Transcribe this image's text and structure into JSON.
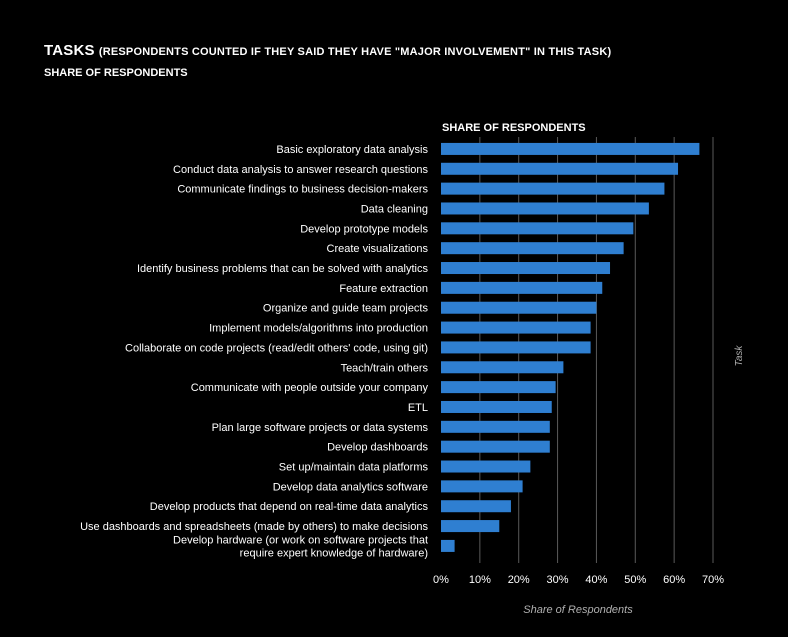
{
  "header": {
    "title_main": "TASKS",
    "title_sub": "(RESPONDENTS COUNTED IF THEY SAID THEY HAVE \"MAJOR INVOLVEMENT\" IN THIS TASK)",
    "subtitle": "SHARE OF RESPONDENTS"
  },
  "colors": {
    "background": "#000000",
    "bar": "#2f7fd1",
    "grid": "#5a5a5a",
    "text": "#ffffff",
    "axis_title": "#b0b0b0"
  },
  "chart_data": {
    "type": "bar",
    "orientation": "horizontal",
    "panel_title": "SHARE OF RESPONDENTS",
    "categories": [
      "Basic exploratory data analysis",
      "Conduct data analysis to answer research questions",
      "Communicate findings to business decision-makers",
      "Data cleaning",
      "Develop prototype models",
      "Create visualizations",
      "Identify business problems  that can  be solved with analytics",
      "Feature extraction",
      "Organize and guide team projects",
      "Implement models/algorithms into production",
      "Collaborate on code projects (read/edit others' code, using git)",
      "Teach/train others",
      "Communicate with people outside your company",
      "ETL",
      "Plan large software projects or data systems",
      "Develop dashboards",
      "Set up/maintain data platforms",
      "Develop data analytics software",
      "Develop products that depend on real-time data analytics",
      "Use dashboards and spreadsheets (made by others) to make decisions",
      "Develop hardware (or work on software projects that\nrequire expert knowledge of hardware)"
    ],
    "values": [
      66.5,
      61,
      57.5,
      53.5,
      49.5,
      47,
      43.5,
      41.5,
      40,
      38.5,
      38.5,
      31.5,
      29.5,
      28.5,
      28,
      28,
      23,
      21,
      18,
      15,
      3.5
    ],
    "xlabel": "Share of Respondents",
    "ylabel": "Task",
    "xlim": [
      0,
      70
    ],
    "xticks": [
      0,
      10,
      20,
      30,
      40,
      50,
      60,
      70
    ],
    "xtick_labels": [
      "0%",
      "10%",
      "20%",
      "30%",
      "40%",
      "50%",
      "60%",
      "70%"
    ],
    "grid": "vertical"
  }
}
